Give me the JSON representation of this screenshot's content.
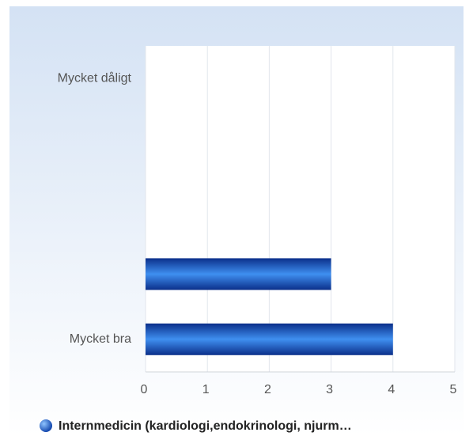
{
  "chart_data": {
    "type": "bar",
    "orientation": "horizontal",
    "categories": [
      "Mycket dåligt",
      null,
      null,
      null,
      "Mycket bra"
    ],
    "series": [
      {
        "name": "Internmedicin (kardiologi,endokrinologi, njurm…",
        "color": "#2f6fd6",
        "values": [
          null,
          null,
          null,
          3,
          4
        ]
      }
    ],
    "xlim": [
      0,
      5
    ],
    "xticks": [
      0,
      1,
      2,
      3,
      4,
      5
    ],
    "grid": true
  }
}
